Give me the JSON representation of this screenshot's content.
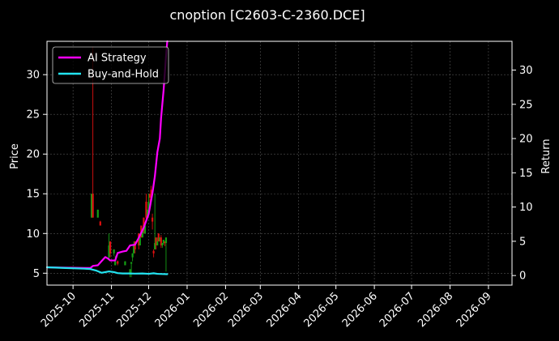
{
  "chart_data": {
    "type": "candlestick+line",
    "title": "cnoption [C2603-C-2360.DCE]",
    "ylabel_left": "Price",
    "ylabel_right": "Return",
    "xlabel": "",
    "x_range": [
      "2025-09-10",
      "2026-09-20"
    ],
    "ylim_left": [
      3.5,
      34.2
    ],
    "ylim_right": [
      -1.4,
      34.2
    ],
    "x_ticks": [
      "2025-10",
      "2025-11",
      "2025-12",
      "2026-01",
      "2026-02",
      "2026-03",
      "2026-04",
      "2026-05",
      "2026-06",
      "2026-07",
      "2026-08",
      "2026-09"
    ],
    "y_ticks_left": [
      5,
      10,
      15,
      20,
      25,
      30
    ],
    "y_ticks_right": [
      0,
      5,
      10,
      15,
      20,
      25,
      30
    ],
    "grid": true,
    "legend_position": "top-left",
    "colors": {
      "background": "#000000",
      "ai_strategy": "#ff00ff",
      "buy_and_hold": "#22e3f0",
      "candle_up": "#14a014",
      "candle_down": "#e01010",
      "grid": "#555555"
    },
    "series": [
      {
        "name": "AI Strategy",
        "axis": "right",
        "color": "#ff00ff",
        "points": [
          [
            "2025-09-10",
            1.2
          ],
          [
            "2025-09-25",
            1.15
          ],
          [
            "2025-10-10",
            1.1
          ],
          [
            "2025-10-15",
            1.1
          ],
          [
            "2025-10-17",
            1.4
          ],
          [
            "2025-10-21",
            1.5
          ],
          [
            "2025-10-24",
            2.1
          ],
          [
            "2025-10-27",
            2.7
          ],
          [
            "2025-10-29",
            2.5
          ],
          [
            "2025-10-31",
            2.2
          ],
          [
            "2025-11-04",
            2.2
          ],
          [
            "2025-11-06",
            3.3
          ],
          [
            "2025-11-10",
            3.5
          ],
          [
            "2025-11-13",
            3.6
          ],
          [
            "2025-11-16",
            4.4
          ],
          [
            "2025-11-20",
            4.5
          ],
          [
            "2025-11-23",
            5.5
          ],
          [
            "2025-11-27",
            7.0
          ],
          [
            "2025-12-01",
            9.0
          ],
          [
            "2025-12-04",
            12.0
          ],
          [
            "2025-12-06",
            14.5
          ],
          [
            "2025-12-08",
            18.0
          ],
          [
            "2025-12-10",
            20.0
          ],
          [
            "2025-12-11",
            23.0
          ],
          [
            "2025-12-13",
            27.0
          ],
          [
            "2025-12-15",
            32.0
          ],
          [
            "2025-12-16",
            34.2
          ]
        ]
      },
      {
        "name": "Buy-and-Hold",
        "axis": "right",
        "color": "#22e3f0",
        "points": [
          [
            "2025-09-10",
            1.2
          ],
          [
            "2025-09-25",
            1.1
          ],
          [
            "2025-10-10",
            1.0
          ],
          [
            "2025-10-15",
            0.95
          ],
          [
            "2025-10-20",
            0.7
          ],
          [
            "2025-10-24",
            0.4
          ],
          [
            "2025-10-30",
            0.6
          ],
          [
            "2025-11-03",
            0.5
          ],
          [
            "2025-11-06",
            0.35
          ],
          [
            "2025-11-10",
            0.3
          ],
          [
            "2025-11-15",
            0.3
          ],
          [
            "2025-11-20",
            0.28
          ],
          [
            "2025-11-26",
            0.3
          ],
          [
            "2025-12-01",
            0.25
          ],
          [
            "2025-12-05",
            0.33
          ],
          [
            "2025-12-08",
            0.25
          ],
          [
            "2025-12-12",
            0.22
          ],
          [
            "2025-12-16",
            0.2
          ]
        ]
      }
    ],
    "candles": [
      {
        "date": "2025-10-16",
        "open": 12.0,
        "close": 15.0,
        "high": 15.0,
        "low": 12.0
      },
      {
        "date": "2025-10-17",
        "open": 15.0,
        "close": 12.0,
        "high": 33.5,
        "low": 12.0
      },
      {
        "date": "2025-10-21",
        "open": 12.0,
        "close": 13.0,
        "high": 13.0,
        "low": 12.0
      },
      {
        "date": "2025-10-23",
        "open": 11.5,
        "close": 11.0,
        "high": 11.6,
        "low": 11.0
      },
      {
        "date": "2025-10-30",
        "open": 7.0,
        "close": 8.5,
        "high": 10.0,
        "low": 6.8
      },
      {
        "date": "2025-10-31",
        "open": 9.0,
        "close": 7.5,
        "high": 9.0,
        "low": 7.0
      },
      {
        "date": "2025-11-03",
        "open": 7.5,
        "close": 8.0,
        "high": 8.0,
        "low": 7.2
      },
      {
        "date": "2025-11-04",
        "open": 6.0,
        "close": 6.5,
        "high": 7.2,
        "low": 6.0
      },
      {
        "date": "2025-11-06",
        "open": 6.5,
        "close": 6.2,
        "high": 6.6,
        "low": 6.0
      },
      {
        "date": "2025-11-12",
        "open": 6.0,
        "close": 6.5,
        "high": 6.5,
        "low": 6.0
      },
      {
        "date": "2025-11-16",
        "open": 5.0,
        "close": 5.5,
        "high": 5.5,
        "low": 4.5
      },
      {
        "date": "2025-11-17",
        "open": 6.2,
        "close": 6.4,
        "high": 6.4,
        "low": 4.5
      },
      {
        "date": "2025-11-18",
        "open": 7.0,
        "close": 7.5,
        "high": 7.5,
        "low": 6.5
      },
      {
        "date": "2025-11-19",
        "open": 7.5,
        "close": 8.5,
        "high": 9.0,
        "low": 7.5
      },
      {
        "date": "2025-11-20",
        "open": 9.0,
        "close": 8.0,
        "high": 9.0,
        "low": 7.5
      },
      {
        "date": "2025-11-23",
        "open": 10.0,
        "close": 8.5,
        "high": 10.0,
        "low": 8.0
      },
      {
        "date": "2025-11-24",
        "open": 8.5,
        "close": 9.5,
        "high": 10.0,
        "low": 8.5
      },
      {
        "date": "2025-11-25",
        "open": 11.0,
        "close": 9.5,
        "high": 11.0,
        "low": 9.5
      },
      {
        "date": "2025-11-26",
        "open": 9.5,
        "close": 10.5,
        "high": 10.5,
        "low": 9.5
      },
      {
        "date": "2025-11-27",
        "open": 12.0,
        "close": 10.5,
        "high": 12.0,
        "low": 10.0
      },
      {
        "date": "2025-11-28",
        "open": 10.0,
        "close": 11.0,
        "high": 11.0,
        "low": 10.0
      },
      {
        "date": "2025-11-29",
        "open": 14.0,
        "close": 12.0,
        "high": 15.0,
        "low": 11.5
      },
      {
        "date": "2025-11-30",
        "open": 12.0,
        "close": 13.0,
        "high": 13.0,
        "low": 12.0
      },
      {
        "date": "2025-12-01",
        "open": 13.0,
        "close": 14.0,
        "high": 15.0,
        "low": 13.0
      },
      {
        "date": "2025-12-02",
        "open": 15.0,
        "close": 14.5,
        "high": 15.0,
        "low": 14.0
      },
      {
        "date": "2025-12-03",
        "open": 15.5,
        "close": 15.0,
        "high": 16.0,
        "low": 14.5
      },
      {
        "date": "2025-12-04",
        "open": 12.0,
        "close": 11.5,
        "high": 12.5,
        "low": 10.5
      },
      {
        "date": "2025-12-05",
        "open": 7.8,
        "close": 7.5,
        "high": 8.0,
        "low": 7.0
      },
      {
        "date": "2025-12-06",
        "open": 8.0,
        "close": 8.8,
        "high": 15.0,
        "low": 8.0
      },
      {
        "date": "2025-12-07",
        "open": 9.5,
        "close": 8.5,
        "high": 9.5,
        "low": 8.0
      },
      {
        "date": "2025-12-08",
        "open": 8.5,
        "close": 9.0,
        "high": 9.5,
        "low": 8.5
      },
      {
        "date": "2025-12-09",
        "open": 10.0,
        "close": 9.0,
        "high": 10.0,
        "low": 9.0
      },
      {
        "date": "2025-12-10",
        "open": 9.0,
        "close": 9.5,
        "high": 9.5,
        "low": 9.0
      },
      {
        "date": "2025-12-11",
        "open": 9.5,
        "close": 8.5,
        "high": 9.8,
        "low": 8.2
      },
      {
        "date": "2025-12-12",
        "open": 8.5,
        "close": 8.8,
        "high": 8.8,
        "low": 8.2
      },
      {
        "date": "2025-12-13",
        "open": 8.8,
        "close": 9.2,
        "high": 9.2,
        "low": 8.6
      },
      {
        "date": "2025-12-14",
        "open": 9.0,
        "close": 8.8,
        "high": 9.0,
        "low": 8.4
      },
      {
        "date": "2025-12-15",
        "open": 8.8,
        "close": 9.5,
        "high": 9.5,
        "low": 5.2
      }
    ]
  }
}
